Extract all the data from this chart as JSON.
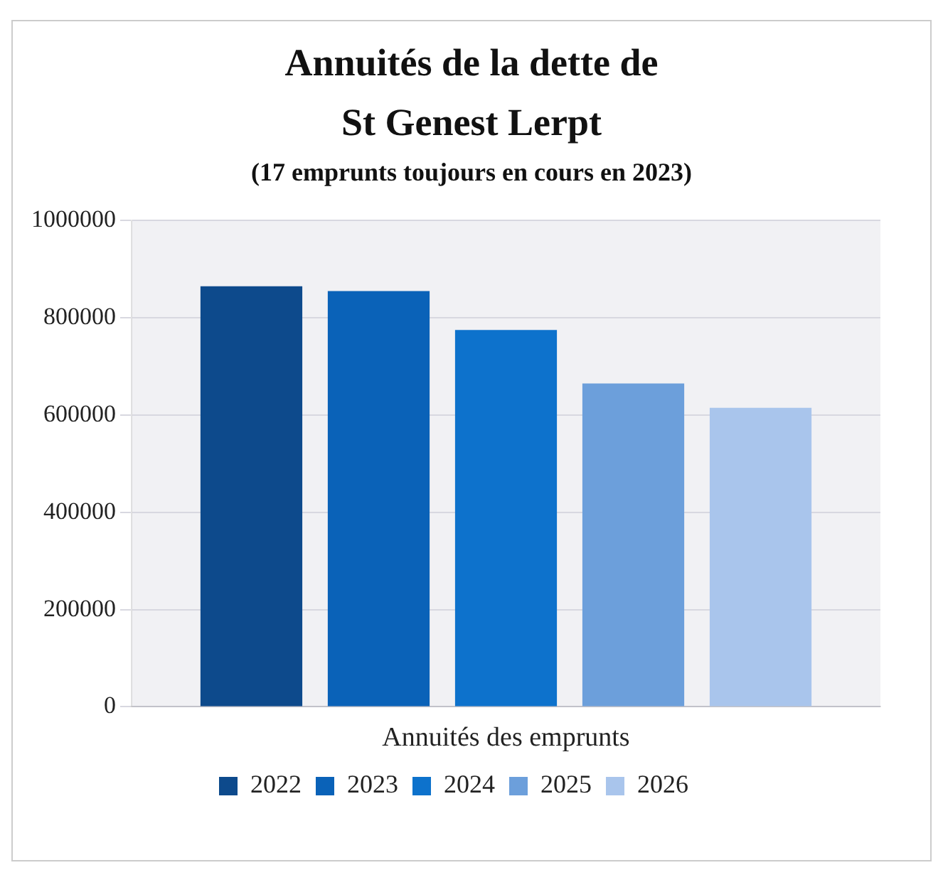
{
  "chart_data": {
    "type": "bar",
    "title": "Annuités de la dette de St Genest Lerpt",
    "subtitle": "(17 emprunts toujours en cours en 2023)",
    "categories": [
      "Annuités des emprunts"
    ],
    "series": [
      {
        "name": "2022",
        "color": "#0d4a8c",
        "values": [
          865000
        ]
      },
      {
        "name": "2023",
        "color": "#0a62b8",
        "values": [
          855000
        ]
      },
      {
        "name": "2024",
        "color": "#0d72cc",
        "values": [
          775000
        ]
      },
      {
        "name": "2025",
        "color": "#6c9fdb",
        "values": [
          665000
        ]
      },
      {
        "name": "2026",
        "color": "#a9c5ec",
        "values": [
          615000
        ]
      }
    ],
    "ylim": [
      0,
      1000000
    ],
    "yticks": [
      0,
      200000,
      400000,
      600000,
      800000,
      1000000
    ],
    "grid": "y",
    "legend": "bottom"
  }
}
